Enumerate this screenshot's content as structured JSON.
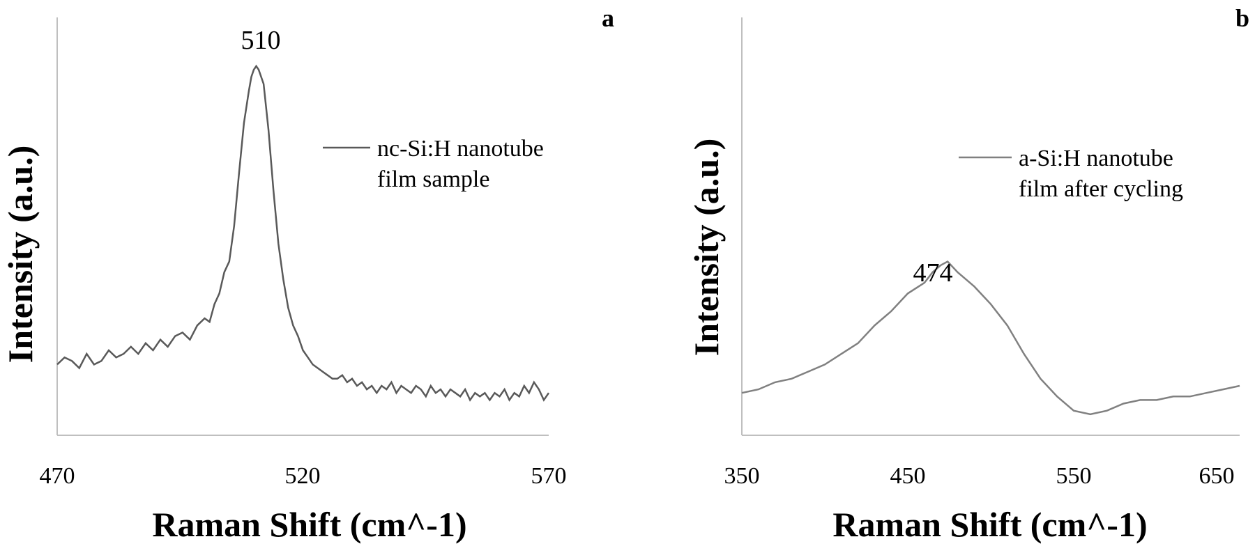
{
  "chart_data": [
    {
      "type": "line",
      "panel_label": "a",
      "xlabel": "Raman Shift (cm^-1)",
      "ylabel": "Intensity (a.u.)",
      "xlim": [
        470,
        570
      ],
      "x_ticks": [
        "470",
        "520",
        "570"
      ],
      "y_ticks": false,
      "grid": false,
      "legend_position": "right, upper middle",
      "annotation": "510",
      "series": [
        {
          "name": "nc-Si:H nanotube film sample",
          "color": "#595959",
          "x": [
            470,
            471.5,
            473,
            474.5,
            476,
            477.5,
            479,
            480.5,
            482,
            483.5,
            485,
            486.5,
            488,
            489.5,
            491,
            492.5,
            494,
            495.5,
            497,
            498.5,
            500,
            501,
            502,
            503,
            504,
            505,
            506,
            507,
            508,
            509,
            509.5,
            510,
            510.5,
            511,
            512,
            513,
            514,
            515,
            516,
            517,
            518,
            519,
            520,
            521,
            522,
            523,
            524,
            525,
            526,
            527,
            528,
            529,
            530,
            531,
            532,
            533,
            534,
            535,
            536,
            537,
            538,
            539,
            540,
            541,
            542,
            543,
            544,
            545,
            546,
            547,
            548,
            549,
            550,
            551,
            552,
            553,
            554,
            555,
            556,
            557,
            558,
            559,
            560,
            561,
            562,
            563,
            564,
            565,
            566,
            567,
            568,
            569,
            570
          ],
          "y": [
            0.16,
            0.18,
            0.17,
            0.15,
            0.19,
            0.16,
            0.17,
            0.2,
            0.18,
            0.19,
            0.21,
            0.19,
            0.22,
            0.2,
            0.23,
            0.21,
            0.24,
            0.25,
            0.23,
            0.27,
            0.29,
            0.28,
            0.33,
            0.36,
            0.42,
            0.45,
            0.55,
            0.7,
            0.84,
            0.93,
            0.97,
            0.99,
            1.0,
            0.99,
            0.95,
            0.82,
            0.65,
            0.5,
            0.4,
            0.32,
            0.27,
            0.24,
            0.2,
            0.18,
            0.16,
            0.15,
            0.14,
            0.13,
            0.12,
            0.12,
            0.13,
            0.11,
            0.12,
            0.1,
            0.11,
            0.09,
            0.1,
            0.08,
            0.1,
            0.09,
            0.11,
            0.08,
            0.1,
            0.09,
            0.08,
            0.1,
            0.09,
            0.07,
            0.1,
            0.08,
            0.09,
            0.07,
            0.09,
            0.08,
            0.07,
            0.09,
            0.06,
            0.08,
            0.07,
            0.08,
            0.06,
            0.08,
            0.07,
            0.09,
            0.06,
            0.08,
            0.07,
            0.1,
            0.08,
            0.11,
            0.09,
            0.06,
            0.08
          ]
        }
      ]
    },
    {
      "type": "line",
      "panel_label": "b",
      "xlabel": "Raman Shift (cm^-1)",
      "ylabel": "Intensity (a.u.)",
      "xlim": [
        350,
        650
      ],
      "x_ticks": [
        "350",
        "450",
        "550",
        "650"
      ],
      "y_ticks": false,
      "grid": false,
      "legend_position": "right, upper middle",
      "annotation": "474",
      "series": [
        {
          "name": "a-Si:H nanotube film after cycling",
          "color": "#808080",
          "x": [
            350,
            360,
            370,
            380,
            390,
            400,
            410,
            420,
            430,
            440,
            450,
            460,
            465,
            470,
            474,
            480,
            490,
            500,
            510,
            520,
            530,
            540,
            550,
            560,
            570,
            580,
            590,
            600,
            610,
            620,
            630,
            640,
            650
          ],
          "y": [
            0.08,
            0.09,
            0.11,
            0.12,
            0.14,
            0.16,
            0.19,
            0.22,
            0.27,
            0.31,
            0.36,
            0.39,
            0.42,
            0.44,
            0.45,
            0.42,
            0.38,
            0.33,
            0.27,
            0.19,
            0.12,
            0.07,
            0.03,
            0.02,
            0.03,
            0.05,
            0.06,
            0.06,
            0.07,
            0.07,
            0.08,
            0.09,
            0.1
          ]
        }
      ]
    }
  ]
}
